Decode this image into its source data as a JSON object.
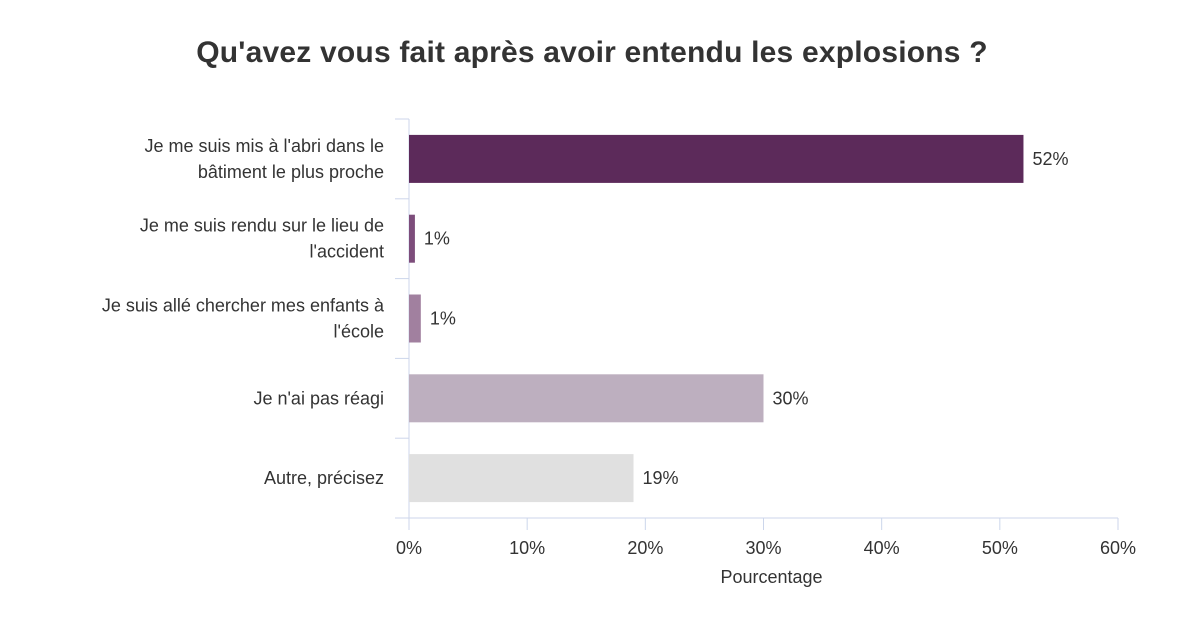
{
  "chart_data": {
    "type": "bar",
    "orientation": "horizontal",
    "title": "Qu'avez vous fait après avoir entendu les explosions ?",
    "xlabel": "Pourcentage",
    "ylabel": "",
    "categories": [
      [
        "Je me suis mis à l'abri dans le",
        "bâtiment le plus proche"
      ],
      [
        "Je me suis rendu sur le lieu de",
        "l'accident"
      ],
      [
        "Je suis allé chercher mes enfants à",
        "l'école"
      ],
      [
        "Je n'ai pas réagi"
      ],
      [
        "Autre, précisez"
      ]
    ],
    "values": [
      52,
      0.5,
      1,
      30,
      19
    ],
    "value_labels": [
      "52%",
      "1%",
      "1%",
      "30%",
      "19%"
    ],
    "colors": [
      "#5c2a5a",
      "#7d4d7b",
      "#a1809f",
      "#bdafbf",
      "#e0e0e0"
    ],
    "xlim": [
      0,
      60
    ],
    "xticks": [
      0,
      10,
      20,
      30,
      40,
      50,
      60
    ],
    "xtick_labels": [
      "0%",
      "10%",
      "20%",
      "30%",
      "40%",
      "50%",
      "60%"
    ],
    "grid": false,
    "axis_color": "#ccd6eb"
  }
}
